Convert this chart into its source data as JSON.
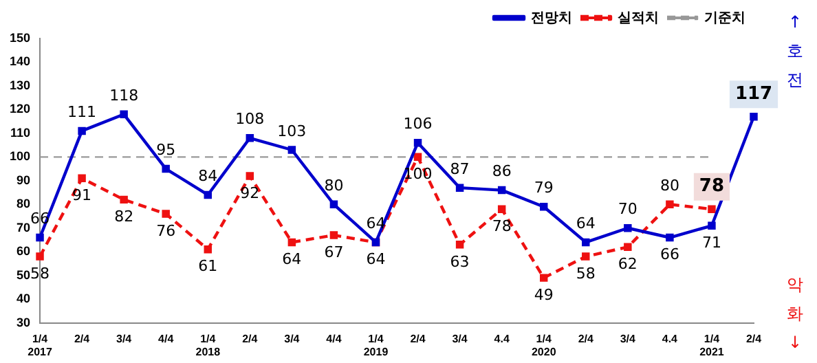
{
  "chart_data": {
    "type": "line",
    "categories": [
      "1/4\n2017",
      "2/4",
      "3/4",
      "4/4",
      "1/4\n2018",
      "2/4",
      "3/4",
      "4/4",
      "1/4\n2019",
      "2/4",
      "3/4",
      "4.4",
      "1/4\n2020",
      "2/4",
      "3/4",
      "4.4",
      "1/4\n2021",
      "2/4"
    ],
    "series": [
      {
        "name": "전망치",
        "color": "#0000cc",
        "line_style": "solid",
        "values": [
          66,
          111,
          118,
          95,
          84,
          108,
          103,
          80,
          64,
          106,
          87,
          86,
          79,
          64,
          70,
          66,
          71,
          117
        ],
        "value_labels": [
          "66",
          "111",
          "118",
          "95",
          "84",
          "108",
          "103",
          "80",
          "64",
          "106",
          "87",
          "86",
          "79",
          "64",
          "70",
          "66",
          "71",
          "117"
        ]
      },
      {
        "name": "실적치",
        "color": "#ee1111",
        "line_style": "dashed",
        "values": [
          58,
          91,
          82,
          76,
          61,
          92,
          64,
          67,
          64,
          100,
          63,
          78,
          49,
          58,
          62,
          80,
          78,
          null
        ],
        "value_labels": [
          "58",
          "91",
          "82",
          "76",
          "61",
          "92",
          "64",
          "67",
          "64",
          "100",
          "63",
          "78",
          "49",
          "58",
          "62",
          "80",
          "78",
          null
        ]
      },
      {
        "name": "기준치",
        "color": "#999999",
        "line_style": "dashed",
        "marker": "none",
        "values": [
          100,
          100,
          100,
          100,
          100,
          100,
          100,
          100,
          100,
          100,
          100,
          100,
          100,
          100,
          100,
          100,
          100,
          null
        ]
      }
    ],
    "ylim": [
      30,
      150
    ],
    "yticks": [
      30,
      40,
      50,
      60,
      70,
      80,
      90,
      100,
      110,
      120,
      130,
      140,
      150
    ],
    "grid": false,
    "legend": "top right",
    "marker": "square",
    "annotations": [
      "↑\n호\n전",
      "악\n화\n↓"
    ]
  }
}
